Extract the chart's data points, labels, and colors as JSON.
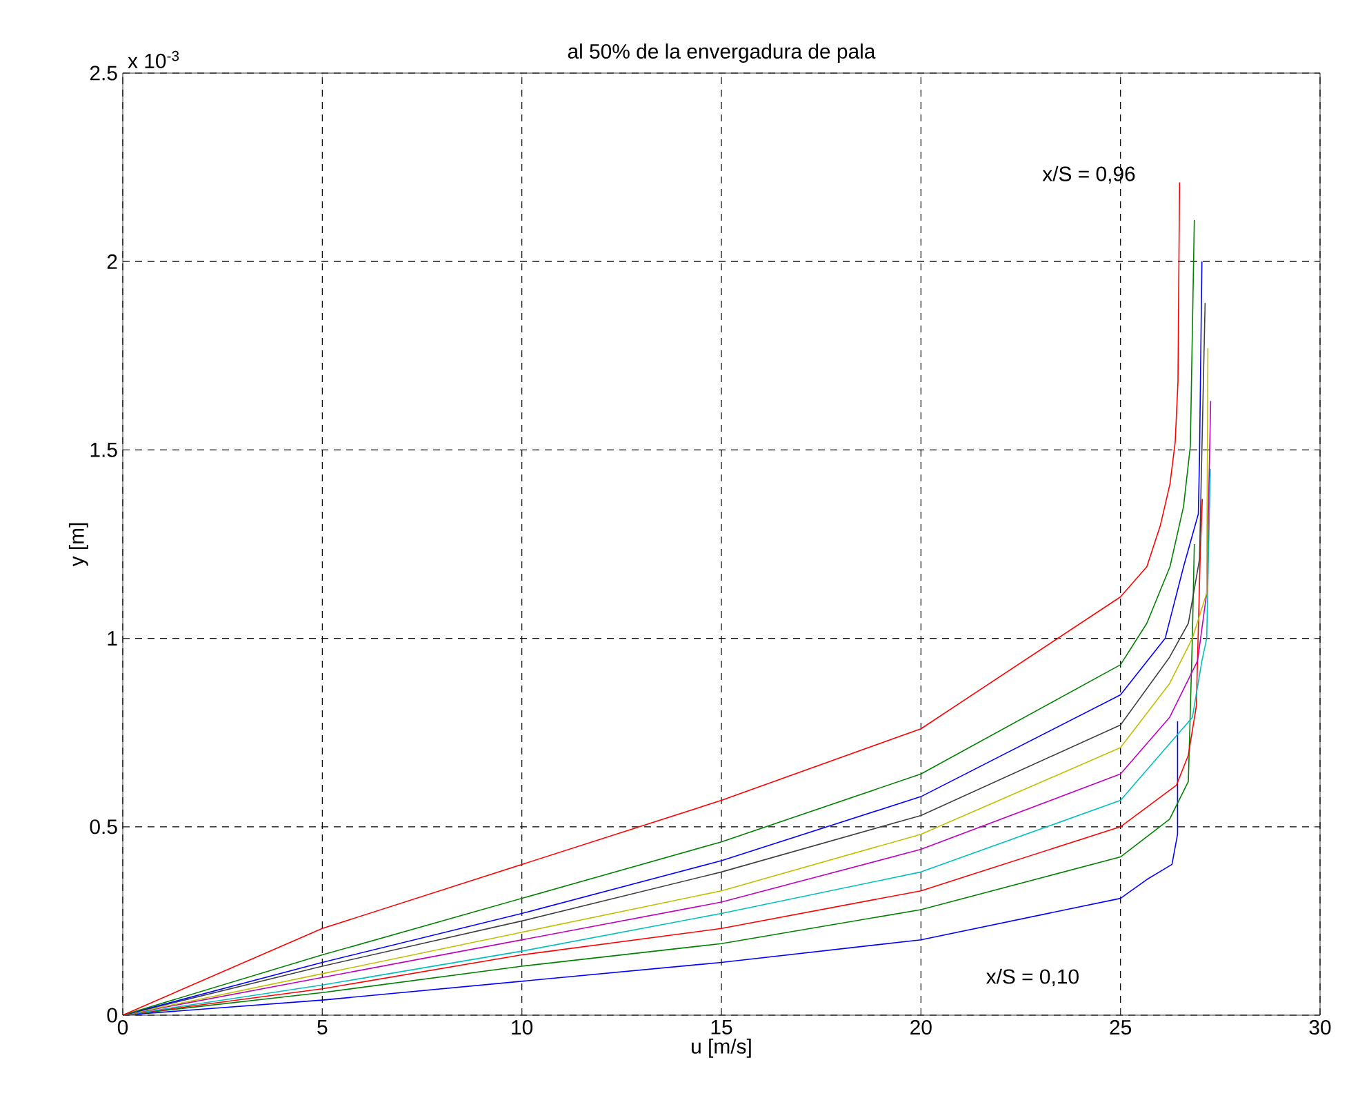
{
  "chart_data": {
    "type": "line",
    "title": "al 50% de la envergadura de pala",
    "xlabel": "u [m/s]",
    "ylabel": "y [m]",
    "annotations": [
      "x 10$^{-3}$",
      "x/S = 0,96",
      "x/S = 0,10"
    ],
    "xlim": [
      0,
      30
    ],
    "xticks": [
      0,
      5,
      10,
      15,
      20,
      25,
      30
    ],
    "ylim": [
      0,
      2.5
    ],
    "yticks": [
      0,
      0.5,
      1,
      1.5,
      2,
      2.5
    ],
    "grid": true,
    "line_style": "solid",
    "marker": "none",
    "series": [
      {
        "color": "#0000ff",
        "x": [
          0,
          5,
          10,
          15,
          20,
          25,
          25.66,
          26.29,
          26.43,
          26.43
        ],
        "values": [
          0,
          0.04,
          0.09,
          0.14,
          0.2,
          0.31,
          0.36,
          0.4,
          0.48,
          0.78
        ]
      },
      {
        "color": "#008000",
        "x": [
          0,
          5,
          10,
          15,
          20,
          25,
          26.23,
          26.7,
          26.8,
          26.85
        ],
        "values": [
          0,
          0.06,
          0.13,
          0.19,
          0.28,
          0.42,
          0.52,
          0.62,
          1.0,
          1.25
        ]
      },
      {
        "color": "#ff0000",
        "x": [
          0,
          5,
          10,
          15,
          20,
          25,
          26.4,
          26.7,
          26.9,
          27.0,
          27.05
        ],
        "values": [
          0,
          0.07,
          0.16,
          0.23,
          0.33,
          0.5,
          0.61,
          0.69,
          0.82,
          1.23,
          1.37
        ]
      },
      {
        "color": "#00bfbf",
        "x": [
          0,
          5,
          10,
          15,
          20,
          25,
          25.98,
          26.8,
          27.04,
          27.16,
          27.25
        ],
        "values": [
          0,
          0.08,
          0.17,
          0.27,
          0.38,
          0.57,
          0.69,
          0.79,
          0.94,
          1.0,
          1.45
        ]
      },
      {
        "color": "#bf00bf",
        "x": [
          0,
          5,
          10,
          15,
          20,
          25,
          26.23,
          26.93,
          27.16,
          27.26
        ],
        "values": [
          0,
          0.1,
          0.2,
          0.3,
          0.44,
          0.64,
          0.79,
          0.94,
          1.12,
          1.63
        ]
      },
      {
        "color": "#bfbf00",
        "x": [
          0,
          5,
          10,
          15,
          20,
          25,
          26.23,
          26.8,
          27.16,
          27.19
        ],
        "values": [
          0,
          0.11,
          0.22,
          0.33,
          0.48,
          0.71,
          0.88,
          1.0,
          1.12,
          1.77
        ]
      },
      {
        "color": "#404040",
        "x": [
          0,
          5,
          10,
          15,
          20,
          25,
          26.23,
          26.7,
          26.98,
          27.12
        ],
        "values": [
          0,
          0.13,
          0.25,
          0.38,
          0.53,
          0.77,
          0.95,
          1.04,
          1.21,
          1.89
        ]
      },
      {
        "color": "#0000ff",
        "x": [
          0,
          5,
          10,
          15,
          20,
          25,
          26.12,
          26.58,
          26.95,
          26.98,
          27.04
        ],
        "values": [
          0,
          0.14,
          0.27,
          0.41,
          0.58,
          0.85,
          1.0,
          1.19,
          1.33,
          1.48,
          2.0
        ]
      },
      {
        "color": "#008000",
        "x": [
          0,
          5,
          10,
          15,
          20,
          25,
          25.66,
          26.24,
          26.58,
          26.75,
          26.85
        ],
        "values": [
          0,
          0.16,
          0.31,
          0.46,
          0.64,
          0.93,
          1.04,
          1.19,
          1.35,
          1.51,
          2.11
        ]
      },
      {
        "color": "#ff0000",
        "x": [
          0,
          5,
          10,
          15,
          20,
          25,
          25.66,
          26.0,
          26.24,
          26.37,
          26.44,
          26.48
        ],
        "values": [
          0,
          0.23,
          0.4,
          0.57,
          0.76,
          1.11,
          1.19,
          1.3,
          1.41,
          1.52,
          1.68,
          2.21
        ]
      }
    ]
  }
}
